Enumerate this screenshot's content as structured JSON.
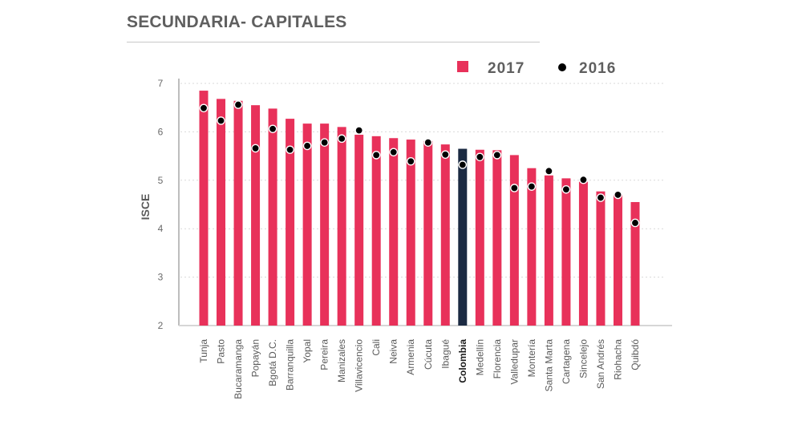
{
  "chart_data": {
    "type": "bar",
    "title": "SECUNDARIA- CAPITALES",
    "xlabel": "",
    "ylabel": "ISCE",
    "ylim": [
      2,
      7
    ],
    "yticks": [
      2,
      3,
      4,
      5,
      6,
      7
    ],
    "grid": true,
    "legend_position": "top-right",
    "categories": [
      "Tunja",
      "Pasto",
      "Bucaramanga",
      "Popayán",
      "Bgotá D.C.",
      "Barranquilla",
      "Yopal",
      "Pereira",
      "Manizales",
      "Villavicencio",
      "Cali",
      "Neiva",
      "Armenia",
      "Cúcuta",
      "Ibagué",
      "Colombia",
      "Medellín",
      "Florencia",
      "Valledupar",
      "Montería",
      "Santa Marta",
      "Cartagena",
      "Sincelejo",
      "San Andrés",
      "Riohacha",
      "Quibdó"
    ],
    "highlight_category": "Colombia",
    "series": [
      {
        "name": "2017",
        "kind": "bar",
        "color": "#e8315a",
        "highlight_color": "#1b2a42",
        "values": [
          6.85,
          6.68,
          6.64,
          6.55,
          6.48,
          6.27,
          6.17,
          6.17,
          6.1,
          5.94,
          5.91,
          5.87,
          5.84,
          5.81,
          5.74,
          5.65,
          5.63,
          5.62,
          5.52,
          5.25,
          5.1,
          5.04,
          4.97,
          4.77,
          4.7,
          4.55
        ]
      },
      {
        "name": "2016",
        "kind": "dot",
        "color": "#000000",
        "values": [
          6.49,
          6.23,
          6.56,
          5.66,
          6.06,
          5.63,
          5.71,
          5.78,
          5.86,
          6.03,
          5.52,
          5.58,
          5.39,
          5.78,
          5.53,
          5.32,
          5.48,
          5.52,
          4.84,
          4.87,
          5.19,
          4.81,
          5.01,
          4.64,
          4.7,
          4.12
        ]
      }
    ]
  }
}
